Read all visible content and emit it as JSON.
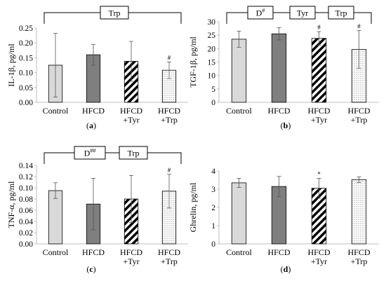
{
  "colors": {
    "control": "#d9d9d9",
    "hfcd": "#7f7f7f",
    "axis": "#bfbfbf",
    "text": "#000000"
  },
  "chart_data": [
    {
      "type": "bar",
      "panel_label": "(a)",
      "ylabel": "IL-1β, pg/ml",
      "categories": [
        "Control",
        "HFCD",
        "HFCD\n+Tyr",
        "HFCD\n+Trp"
      ],
      "values": [
        0.125,
        0.16,
        0.138,
        0.108
      ],
      "errors": [
        0.107,
        0.035,
        0.067,
        0.028
      ],
      "patterns": [
        "solid-light",
        "solid-dark",
        "diagonal",
        "dots"
      ],
      "marks": [
        "",
        "",
        "",
        "#"
      ],
      "ylim": [
        0,
        0.25
      ],
      "yticks": [
        "0.00",
        "0.05",
        "0.10",
        "0.15",
        "0.20",
        "0.25"
      ],
      "brackets": [
        "Trp"
      ]
    },
    {
      "type": "bar",
      "panel_label": "(b)",
      "ylabel": "TGF-1β, pg/ml",
      "categories": [
        "Control",
        "HFCD",
        "HFCD\n+Tyr",
        "HFCD\n+Trp"
      ],
      "values": [
        23.5,
        25.5,
        23.8,
        19.7
      ],
      "errors": [
        3.0,
        2.3,
        2.5,
        7.0
      ],
      "patterns": [
        "solid-light",
        "solid-dark",
        "diagonal",
        "dots"
      ],
      "marks": [
        "",
        "",
        "#",
        "#"
      ],
      "ylim": [
        0,
        30
      ],
      "yticks": [
        "0",
        "5",
        "10",
        "15",
        "20",
        "25",
        "30"
      ],
      "brackets": [
        "D#",
        "Tyr",
        "Trp"
      ]
    },
    {
      "type": "bar",
      "panel_label": "(c)",
      "ylabel": "TNF-α, pg/ml",
      "categories": [
        "Control",
        "HFCD",
        "HFCD\n+Tyr",
        "HFCD\n+Trp"
      ],
      "values": [
        0.095,
        0.071,
        0.08,
        0.094
      ],
      "errors": [
        0.014,
        0.046,
        0.042,
        0.03
      ],
      "patterns": [
        "solid-light",
        "solid-dark",
        "diagonal",
        "dots"
      ],
      "marks": [
        "",
        "",
        "",
        "#"
      ],
      "ylim": [
        0,
        0.14
      ],
      "yticks": [
        "0.00",
        "0.02",
        "0.04",
        "0.06",
        "0.08",
        "0.10",
        "0.12",
        "0.14"
      ],
      "brackets": [
        "D##",
        "Trp"
      ]
    },
    {
      "type": "bar",
      "panel_label": "(d)",
      "ylabel": "Ghrelin, pg/ml",
      "categories": [
        "Control",
        "HFCD",
        "HFCD\n+Tyr",
        "HFCD\n+Trp"
      ],
      "values": [
        3.35,
        3.15,
        3.05,
        3.52
      ],
      "errors": [
        0.25,
        0.55,
        0.55,
        0.15
      ],
      "patterns": [
        "solid-light",
        "solid-dark",
        "diagonal",
        "dots"
      ],
      "marks": [
        "",
        "",
        "*",
        ""
      ],
      "ylim": [
        0,
        4
      ],
      "yticks": [
        "0",
        "1",
        "2",
        "3",
        "4"
      ],
      "brackets": []
    }
  ]
}
